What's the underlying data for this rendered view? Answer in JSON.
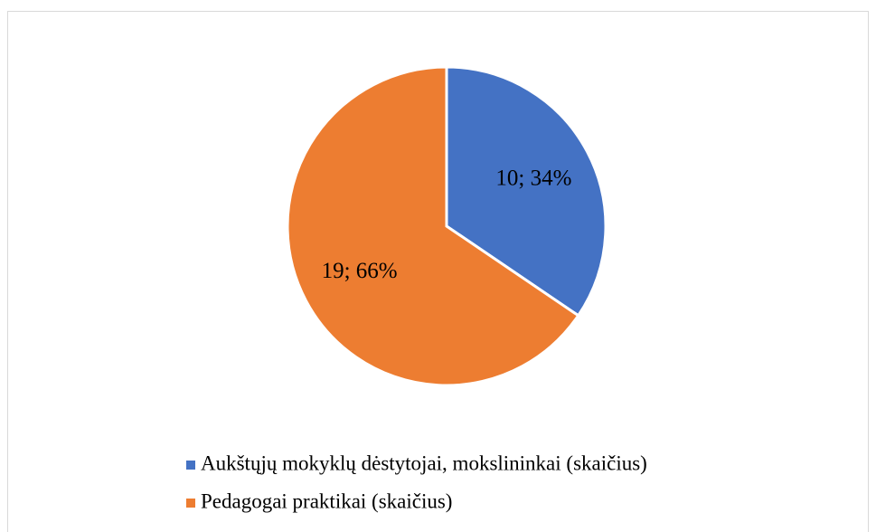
{
  "chart_data": {
    "type": "pie",
    "categories": [
      "Aukštųjų mokyklų dėstytojai, mokslininkai (skaičius)",
      "Pedagogai praktikai (skaičius)"
    ],
    "values": [
      10,
      19
    ],
    "value_labels": [
      "10; 34%",
      "19; 66%"
    ],
    "colors": [
      "#4472c4",
      "#ed7d31"
    ],
    "legend": "bottom"
  }
}
